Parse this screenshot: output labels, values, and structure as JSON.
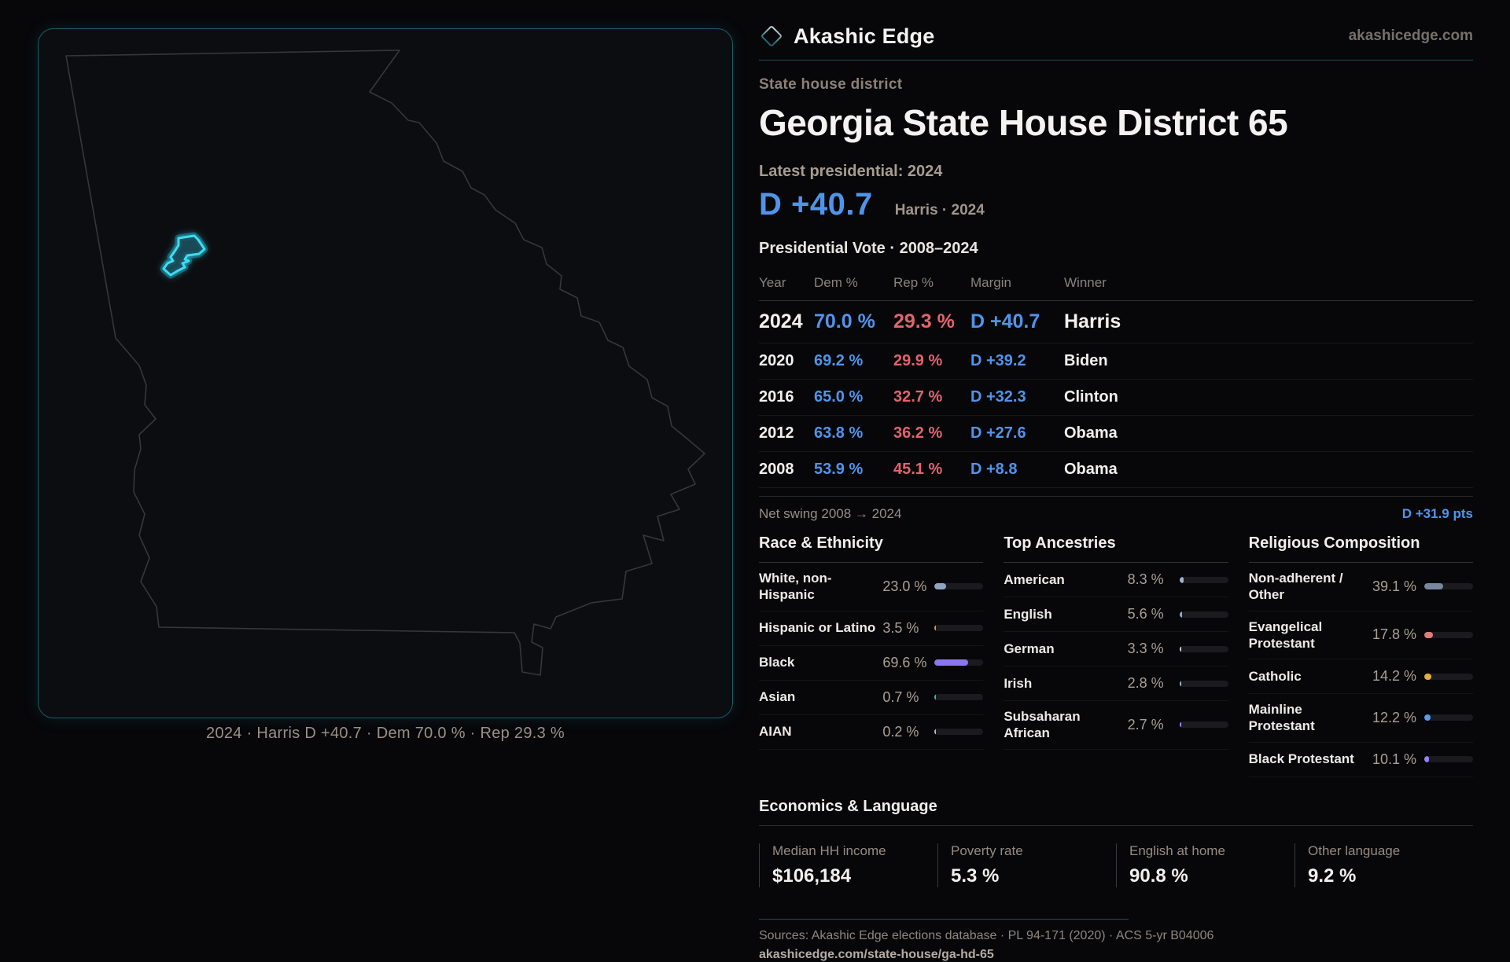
{
  "brand": {
    "name": "Akashic Edge",
    "domain": "akashicedge.com"
  },
  "header": {
    "kicker": "State house district",
    "title": "Georgia State House District 65"
  },
  "latest": {
    "label": "Latest presidential: 2024",
    "margin": "D +40.7",
    "detail": "Harris · 2024"
  },
  "map": {
    "caption": "2024 · Harris D +40.7 · Dem 70.0 % · Rep 29.3 %"
  },
  "table": {
    "title": "Presidential Vote · 2008–2024",
    "columns": [
      "Year",
      "Dem %",
      "Rep %",
      "Margin",
      "Winner"
    ],
    "rows": [
      {
        "year": "2024",
        "dem": "70.0 %",
        "rep": "29.3 %",
        "margin": "D +40.7",
        "winner": "Harris"
      },
      {
        "year": "2020",
        "dem": "69.2 %",
        "rep": "29.9 %",
        "margin": "D +39.2",
        "winner": "Biden"
      },
      {
        "year": "2016",
        "dem": "65.0 %",
        "rep": "32.7 %",
        "margin": "D +32.3",
        "winner": "Clinton"
      },
      {
        "year": "2012",
        "dem": "63.8 %",
        "rep": "36.2 %",
        "margin": "D +27.6",
        "winner": "Obama"
      },
      {
        "year": "2008",
        "dem": "53.9 %",
        "rep": "45.1 %",
        "margin": "D +8.8",
        "winner": "Obama"
      }
    ],
    "net_swing_label": "Net swing 2008 → 2024",
    "net_swing_value": "D +31.9 pts"
  },
  "race": {
    "title": "Race & Ethnicity",
    "rows": [
      {
        "label": "White, non-Hispanic",
        "value": "23.0 %",
        "pct": 23.0,
        "color": "#8ea4c2"
      },
      {
        "label": "Hispanic or Latino",
        "value": "3.5 %",
        "pct": 3.5,
        "color": "#e8951f"
      },
      {
        "label": "Black",
        "value": "69.6 %",
        "pct": 69.6,
        "color": "#8b76ec"
      },
      {
        "label": "Asian",
        "value": "0.7 %",
        "pct": 0.7,
        "color": "#2fc98c"
      },
      {
        "label": "AIAN",
        "value": "0.2 %",
        "pct": 0.2,
        "color": "#c4b8ae"
      }
    ]
  },
  "ancestries": {
    "title": "Top Ancestries",
    "rows": [
      {
        "label": "American",
        "value": "8.3 %",
        "pct": 8.3,
        "color": "#9eb3d0"
      },
      {
        "label": "English",
        "value": "5.6 %",
        "pct": 5.6,
        "color": "#85aede"
      },
      {
        "label": "German",
        "value": "3.3 %",
        "pct": 3.3,
        "color": "#cfd4da"
      },
      {
        "label": "Irish",
        "value": "2.8 %",
        "pct": 2.8,
        "color": "#aab8c6"
      },
      {
        "label": "Subsaharan African",
        "value": "2.7 %",
        "pct": 2.7,
        "color": "#9d8bf4"
      }
    ]
  },
  "religion": {
    "title": "Religious Composition",
    "rows": [
      {
        "label": "Non-adherent / Other",
        "value": "39.1 %",
        "pct": 39.1,
        "color": "#76879e"
      },
      {
        "label": "Evangelical Protestant",
        "value": "17.8 %",
        "pct": 17.8,
        "color": "#e27a7a"
      },
      {
        "label": "Catholic",
        "value": "14.2 %",
        "pct": 14.2,
        "color": "#e3ae3c"
      },
      {
        "label": "Mainline Protestant",
        "value": "12.2 %",
        "pct": 12.2,
        "color": "#5b9bf0"
      },
      {
        "label": "Black Protestant",
        "value": "10.1 %",
        "pct": 10.1,
        "color": "#9b82f2"
      }
    ]
  },
  "economics": {
    "title": "Economics & Language",
    "stats": [
      {
        "label": "Median HH income",
        "value": "$106,184"
      },
      {
        "label": "Poverty rate",
        "value": "5.3 %"
      },
      {
        "label": "English at home",
        "value": "90.8 %"
      },
      {
        "label": "Other language",
        "value": "9.2 %"
      }
    ]
  },
  "footer": {
    "sources": "Sources: Akashic Edge elections database · PL 94-171 (2020) · ACS 5-yr B04006",
    "url": "akashicedge.com/state-house/ga-hd-65"
  },
  "colors": {
    "dem": "#5094ea",
    "rep": "#e2636c",
    "accent": "#2dd4ee"
  },
  "chart_data": [
    {
      "type": "table",
      "title": "Presidential Vote · 2008–2024",
      "columns": [
        "Year",
        "Dem %",
        "Rep %",
        "Margin",
        "Winner"
      ],
      "rows": [
        [
          2024,
          70.0,
          29.3,
          "D +40.7",
          "Harris"
        ],
        [
          2020,
          69.2,
          29.9,
          "D +39.2",
          "Biden"
        ],
        [
          2016,
          65.0,
          32.7,
          "D +32.3",
          "Clinton"
        ],
        [
          2012,
          63.8,
          36.2,
          "D +27.6",
          "Obama"
        ],
        [
          2008,
          53.9,
          45.1,
          "D +8.8",
          "Obama"
        ]
      ],
      "annotations": [
        "Net swing 2008 → 2024: D +31.9 pts",
        "Latest presidential 2024: D +40.7 (Harris)"
      ]
    },
    {
      "type": "bar",
      "title": "Race & Ethnicity",
      "categories": [
        "White, non-Hispanic",
        "Hispanic or Latino",
        "Black",
        "Asian",
        "AIAN"
      ],
      "values": [
        23.0,
        3.5,
        69.6,
        0.7,
        0.2
      ],
      "xlabel": "",
      "ylabel": "%",
      "ylim": [
        0,
        100
      ]
    },
    {
      "type": "bar",
      "title": "Top Ancestries",
      "categories": [
        "American",
        "English",
        "German",
        "Irish",
        "Subsaharan African"
      ],
      "values": [
        8.3,
        5.6,
        3.3,
        2.8,
        2.7
      ],
      "xlabel": "",
      "ylabel": "%",
      "ylim": [
        0,
        100
      ]
    },
    {
      "type": "bar",
      "title": "Religious Composition",
      "categories": [
        "Non-adherent / Other",
        "Evangelical Protestant",
        "Catholic",
        "Mainline Protestant",
        "Black Protestant"
      ],
      "values": [
        39.1,
        17.8,
        14.2,
        12.2,
        10.1
      ],
      "xlabel": "",
      "ylabel": "%",
      "ylim": [
        0,
        100
      ]
    },
    {
      "type": "bar",
      "title": "Economics & Language",
      "categories": [
        "Median HH income",
        "Poverty rate",
        "English at home",
        "Other language"
      ],
      "values": [
        106184,
        5.3,
        90.8,
        9.2
      ]
    }
  ]
}
